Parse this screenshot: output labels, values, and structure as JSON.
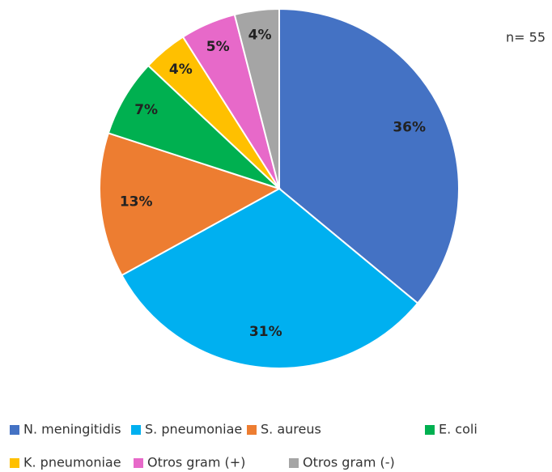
{
  "chart_data": {
    "type": "pie",
    "annotation": "n= 55",
    "categories": [
      "N. meningitidis",
      "S. pneumoniae",
      "S. aureus",
      "E. coli",
      "K. pneumoniae",
      "Otros gram (+)",
      "Otros gram (-)"
    ],
    "values": [
      36,
      31,
      13,
      7,
      4,
      5,
      4
    ],
    "value_labels": [
      "36%",
      "31%",
      "13%",
      "7%",
      "4%",
      "5%",
      "4%"
    ],
    "colors": [
      "#4472c4",
      "#00b0f0",
      "#ed7d31",
      "#00b050",
      "#ffc000",
      "#e769c9",
      "#a5a5a5"
    ],
    "legend": "bottom"
  }
}
